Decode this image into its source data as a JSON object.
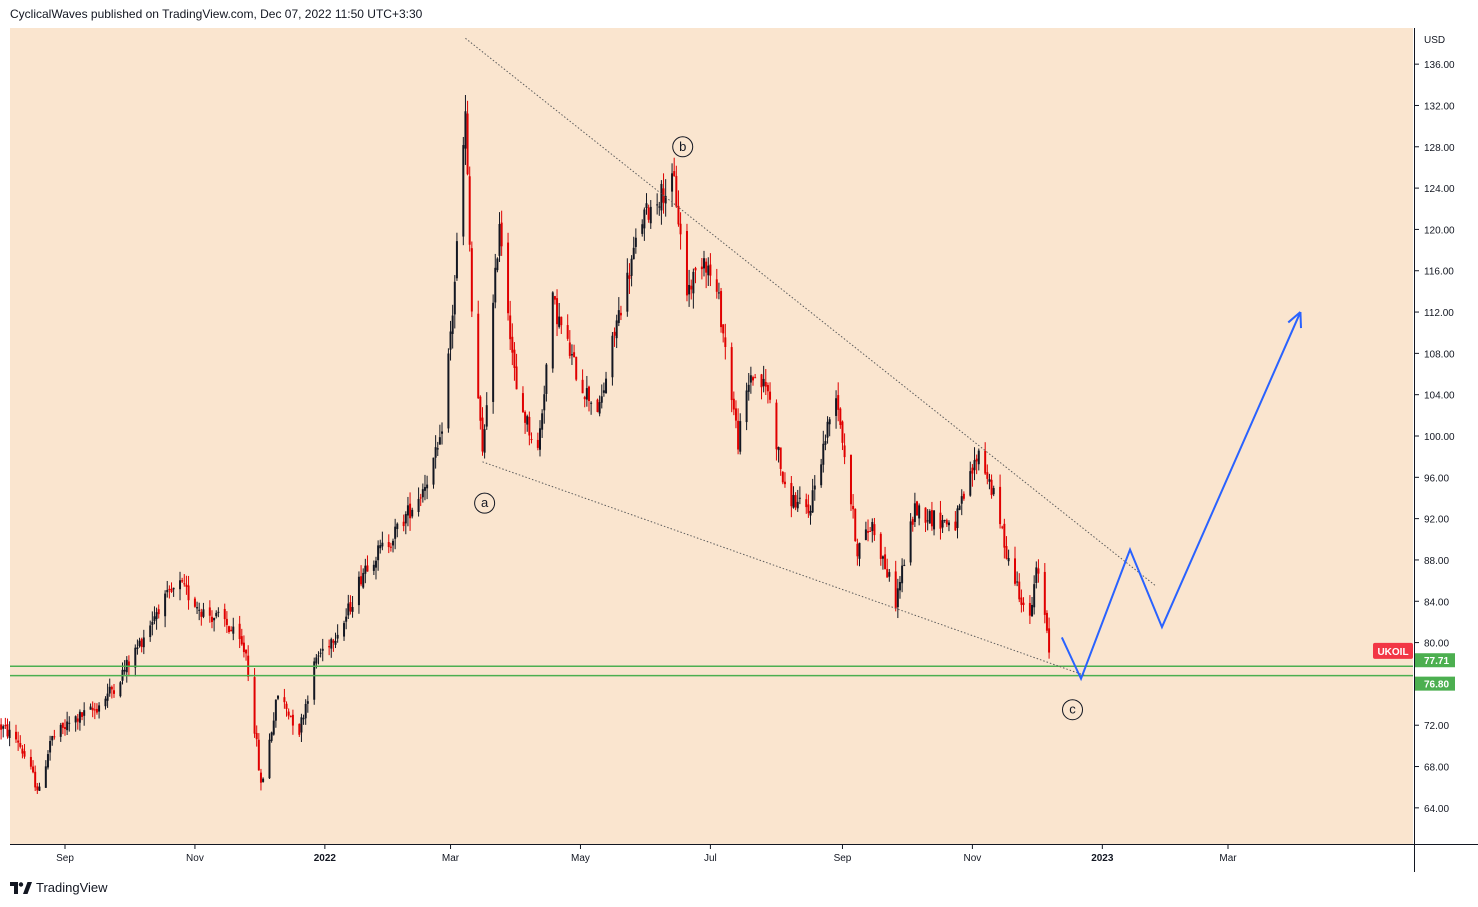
{
  "header": {
    "text": "CyclicalWaves published on TradingView.com, Dec 07, 2022 11:50 UTC+3:30"
  },
  "footer": {
    "brand": "TradingView",
    "logo_icon": "tradingview-logo-icon"
  },
  "chart_data": {
    "type": "line",
    "title": "",
    "symbol": "UKOIL",
    "currency": "USD",
    "ylim": [
      60.5,
      139.5
    ],
    "y_ticks": [
      136,
      132,
      128,
      124,
      120,
      116,
      112,
      108,
      104,
      100,
      96,
      92,
      88,
      84,
      80,
      72,
      68,
      64
    ],
    "y_tick_labels": [
      "136.00",
      "132.00",
      "128.00",
      "124.00",
      "120.00",
      "116.00",
      "112.00",
      "108.00",
      "104.00",
      "100.00",
      "96.00",
      "92.00",
      "88.00",
      "84.00",
      "80.00",
      "72.00",
      "68.00",
      "64.00"
    ],
    "x_ticks": [
      {
        "date": "2021-09-01",
        "label": "Sep",
        "bold": false
      },
      {
        "date": "2021-11-01",
        "label": "Nov",
        "bold": false
      },
      {
        "date": "2022-01-01",
        "label": "2022",
        "bold": true
      },
      {
        "date": "2022-03-01",
        "label": "Mar",
        "bold": false
      },
      {
        "date": "2022-05-01",
        "label": "May",
        "bold": false
      },
      {
        "date": "2022-07-01",
        "label": "Jul",
        "bold": false
      },
      {
        "date": "2022-09-01",
        "label": "Sep",
        "bold": false
      },
      {
        "date": "2022-11-01",
        "label": "Nov",
        "bold": false
      },
      {
        "date": "2023-01-01",
        "label": "2023",
        "bold": true
      },
      {
        "date": "2023-03-01",
        "label": "Mar",
        "bold": false
      }
    ],
    "series": [
      {
        "style": "candlesticks",
        "color_up": "#131722",
        "color_down": "#e00000",
        "points": [
          [
            "2021-08-01",
            72
          ],
          [
            "2021-08-10",
            70.5
          ],
          [
            "2021-08-20",
            65.5
          ],
          [
            "2021-08-25",
            70.5
          ],
          [
            "2021-09-05",
            72.5
          ],
          [
            "2021-09-15",
            73.5
          ],
          [
            "2021-09-25",
            76
          ],
          [
            "2021-10-05",
            79.5
          ],
          [
            "2021-10-15",
            83.5
          ],
          [
            "2021-10-25",
            85.5
          ],
          [
            "2021-11-05",
            83
          ],
          [
            "2021-11-15",
            82
          ],
          [
            "2021-11-25",
            79
          ],
          [
            "2021-11-30",
            70
          ],
          [
            "2021-12-02",
            66
          ],
          [
            "2021-12-10",
            75
          ],
          [
            "2021-12-20",
            71.5
          ],
          [
            "2021-12-28",
            78.5
          ],
          [
            "2022-01-10",
            82
          ],
          [
            "2022-01-20",
            87.5
          ],
          [
            "2022-02-01",
            90
          ],
          [
            "2022-02-15",
            94.5
          ],
          [
            "2022-02-24",
            99
          ],
          [
            "2022-03-02",
            112
          ],
          [
            "2022-03-08",
            131
          ],
          [
            "2022-03-11",
            112
          ],
          [
            "2022-03-16",
            98
          ],
          [
            "2022-03-24",
            121
          ],
          [
            "2022-04-01",
            104
          ],
          [
            "2022-04-11",
            98.5
          ],
          [
            "2022-04-18",
            113
          ],
          [
            "2022-05-01",
            105
          ],
          [
            "2022-05-10",
            102.5
          ],
          [
            "2022-05-18",
            111
          ],
          [
            "2022-05-30",
            121
          ],
          [
            "2022-06-08",
            123.5
          ],
          [
            "2022-06-14",
            124.5
          ],
          [
            "2022-06-20",
            114
          ],
          [
            "2022-06-28",
            117.5
          ],
          [
            "2022-07-05",
            113
          ],
          [
            "2022-07-14",
            99.5
          ],
          [
            "2022-07-20",
            106
          ],
          [
            "2022-07-28",
            104.5
          ],
          [
            "2022-08-05",
            94.5
          ],
          [
            "2022-08-16",
            92.5
          ],
          [
            "2022-08-29",
            104.5
          ],
          [
            "2022-09-08",
            89
          ],
          [
            "2022-09-15",
            91.5
          ],
          [
            "2022-09-26",
            84
          ],
          [
            "2022-10-05",
            93
          ],
          [
            "2022-10-14",
            92
          ],
          [
            "2022-10-24",
            91.5
          ],
          [
            "2022-11-04",
            98.5
          ],
          [
            "2022-11-10",
            95
          ],
          [
            "2022-11-18",
            88
          ],
          [
            "2022-11-23",
            85
          ],
          [
            "2022-11-28",
            82
          ],
          [
            "2022-12-01",
            87
          ],
          [
            "2022-12-05",
            83
          ],
          [
            "2022-12-07",
            79.5
          ]
        ]
      }
    ],
    "support_levels": [
      {
        "value": 77.71,
        "label": "77.71",
        "color": "#4caf50"
      },
      {
        "value": 76.8,
        "label": "76.80",
        "color": "#4caf50"
      }
    ],
    "last_price_label": {
      "text": "UKOIL",
      "value": 79.2,
      "color": "#f23645"
    },
    "trendlines": [
      {
        "name": "upper-trendline",
        "from": [
          "2022-03-08",
          138.5
        ],
        "to": [
          "2023-01-26",
          85.5
        ]
      },
      {
        "name": "lower-trendline",
        "from": [
          "2022-03-16",
          97.5
        ],
        "to": [
          "2022-12-24",
          76.8
        ]
      }
    ],
    "wave_labels": [
      {
        "text": "a",
        "date": "2022-03-17",
        "value": 93.5
      },
      {
        "text": "b",
        "date": "2022-06-18",
        "value": 128
      },
      {
        "text": "c",
        "date": "2022-12-18",
        "value": 73.5
      }
    ],
    "projection": {
      "color": "#2962ff",
      "points": [
        [
          "2022-12-13",
          80.5
        ],
        [
          "2022-12-22",
          76.5
        ],
        [
          "2023-01-14",
          89
        ],
        [
          "2023-01-29",
          81.5
        ],
        [
          "2023-04-04",
          112
        ]
      ]
    },
    "background_color": "#fae5cf"
  }
}
